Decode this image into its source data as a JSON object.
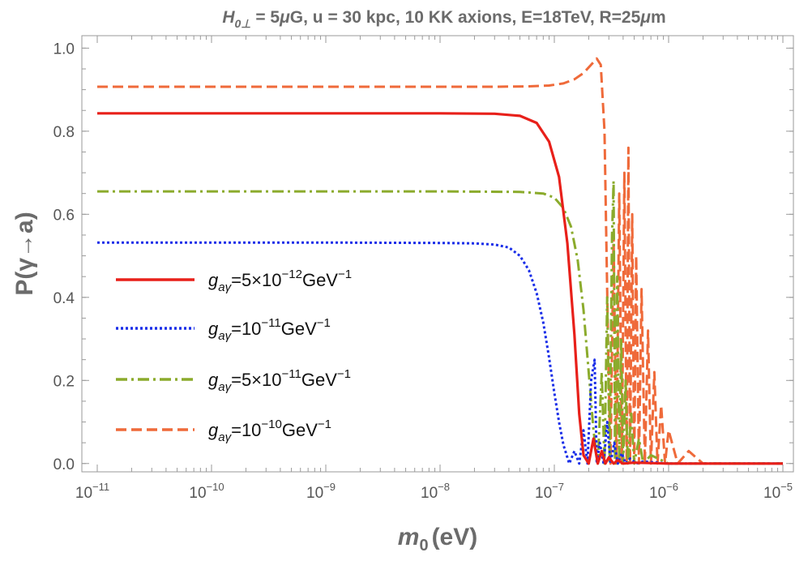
{
  "chart_data": {
    "type": "line",
    "title": "H0⊥ = 5μG, u = 30 kpc, 10 KK axions, E=18TeV, R=25μm",
    "title_parts": {
      "H": "H",
      "sub": "0⊥",
      "rest1": " = 5",
      "mu1": "μ",
      "rest2": "G, u = 30 kpc, 10 KK axions, E=18TeV, R=25",
      "mu2": "μ",
      "rest3": "m"
    },
    "xlabel": "m0 (eV)",
    "xlabel_parts": {
      "main": "m",
      "sub": "0",
      "unit": "(eV)"
    },
    "ylabel": "P(γ→a)",
    "xscale": "log",
    "xlim": [
      1e-11,
      1e-05
    ],
    "ylim": [
      -0.02,
      1.03
    ],
    "grid": false,
    "legend_position": "left",
    "xticks": [
      {
        "value": 1e-11,
        "base": "10",
        "exp": "−11"
      },
      {
        "value": 1e-10,
        "base": "10",
        "exp": "−10"
      },
      {
        "value": 1e-09,
        "base": "10",
        "exp": "−9"
      },
      {
        "value": 1e-08,
        "base": "10",
        "exp": "−8"
      },
      {
        "value": 1e-07,
        "base": "10",
        "exp": "−7"
      },
      {
        "value": 1e-06,
        "base": "10",
        "exp": "−6"
      },
      {
        "value": 1e-05,
        "base": "10",
        "exp": "−5"
      }
    ],
    "yticks": [
      {
        "value": 0.0,
        "label": "0.0"
      },
      {
        "value": 0.2,
        "label": "0.2"
      },
      {
        "value": 0.4,
        "label": "0.4"
      },
      {
        "value": 0.6,
        "label": "0.6"
      },
      {
        "value": 0.8,
        "label": "0.8"
      },
      {
        "value": 1.0,
        "label": "1.0"
      }
    ],
    "series": [
      {
        "name": "gaγ=5×10^-12 GeV^-1",
        "label": {
          "g": "g",
          "sub": "aγ",
          "pre": "=5×10",
          "exp": "−12",
          "unit": "GeV",
          "uexp": "−1"
        },
        "color": "#e8201a",
        "dash": "solid",
        "plateau": 0.843,
        "x": [
          1e-11,
          1e-09,
          1e-08,
          3e-08,
          5e-08,
          7e-08,
          9e-08,
          1.1e-07,
          1.3e-07,
          1.5e-07,
          1.65e-07,
          1.8e-07,
          2e-07,
          2.2e-07,
          2.4e-07,
          2.6e-07,
          2.8e-07,
          3e-07,
          3.3e-07,
          3.6e-07,
          4e-07,
          5e-07,
          1e-06,
          1e-05
        ],
        "y": [
          0.843,
          0.843,
          0.843,
          0.842,
          0.837,
          0.82,
          0.775,
          0.69,
          0.53,
          0.31,
          0.12,
          0.02,
          0.0,
          0.06,
          0.0,
          0.03,
          0.0,
          0.015,
          0.0,
          0.008,
          0.0,
          0.002,
          0.0,
          0.0
        ]
      },
      {
        "name": "gaγ=10^-11 GeV^-1",
        "label": {
          "g": "g",
          "sub": "aγ",
          "pre": "=10",
          "exp": "−11",
          "unit": "GeV",
          "uexp": "−1"
        },
        "color": "#1a2ee8",
        "dash": "dotted",
        "plateau": 0.532,
        "x": [
          1e-11,
          1e-09,
          1e-08,
          2e-08,
          3e-08,
          4e-08,
          5e-08,
          6e-08,
          7e-08,
          8e-08,
          9e-08,
          1e-07,
          1.1e-07,
          1.2e-07,
          1.35e-07,
          1.5e-07,
          1.65e-07,
          1.8e-07,
          1.95e-07,
          2.1e-07,
          2.25e-07,
          2.35e-07,
          2.5e-07,
          2.7e-07,
          2.9e-07,
          3.1e-07,
          3.35e-07,
          3.6e-07,
          3.9e-07,
          4.2e-07,
          4.6e-07,
          5.2e-07,
          6e-07,
          1e-06,
          1e-05
        ],
        "y": [
          0.532,
          0.532,
          0.531,
          0.53,
          0.527,
          0.52,
          0.5,
          0.465,
          0.41,
          0.34,
          0.255,
          0.17,
          0.1,
          0.045,
          0.0,
          0.03,
          0.0,
          0.08,
          0.0,
          0.2,
          0.25,
          0.0,
          0.05,
          0.0,
          0.1,
          0.0,
          0.05,
          0.0,
          0.025,
          0.0,
          0.012,
          0.0,
          0.005,
          0.0,
          0.0
        ]
      },
      {
        "name": "gaγ=5×10^-11 GeV^-1",
        "label": {
          "g": "g",
          "sub": "aγ",
          "pre": "=5×10",
          "exp": "−11",
          "unit": "GeV",
          "uexp": "−1"
        },
        "color": "#8bab2c",
        "dash": "dashdot",
        "plateau": 0.655,
        "x": [
          1e-11,
          1e-09,
          1e-08,
          5e-08,
          8e-08,
          1e-07,
          1.2e-07,
          1.4e-07,
          1.6e-07,
          1.8e-07,
          2e-07,
          2.2e-07,
          2.4e-07,
          2.6e-07,
          2.75e-07,
          2.9e-07,
          3.05e-07,
          3.2e-07,
          3.3e-07,
          3.4e-07,
          3.55e-07,
          3.7e-07,
          3.85e-07,
          4e-07,
          4.2e-07,
          4.4e-07,
          4.7e-07,
          5e-07,
          5.5e-07,
          6e-07,
          7e-07,
          1e-06,
          1e-05
        ],
        "y": [
          0.655,
          0.655,
          0.655,
          0.654,
          0.65,
          0.64,
          0.615,
          0.57,
          0.49,
          0.37,
          0.22,
          0.08,
          0.0,
          0.22,
          0.0,
          0.4,
          0.0,
          0.55,
          0.68,
          0.0,
          0.45,
          0.0,
          0.3,
          0.0,
          0.2,
          0.0,
          0.12,
          0.0,
          0.06,
          0.0,
          0.02,
          0.0,
          0.0
        ]
      },
      {
        "name": "gaγ=10^-10 GeV^-1",
        "label": {
          "g": "g",
          "sub": "aγ",
          "pre": "=10",
          "exp": "−10",
          "unit": "GeV",
          "uexp": "−1"
        },
        "color": "#ef6a3a",
        "dash": "dashed",
        "plateau": 0.907,
        "x": [
          1e-11,
          1e-09,
          1e-08,
          3e-08,
          6e-08,
          9e-08,
          1.2e-07,
          1.5e-07,
          1.8e-07,
          2.1e-07,
          2.35e-07,
          2.55e-07,
          2.75e-07,
          2.95e-07,
          3.1e-07,
          3.3e-07,
          3.5e-07,
          3.7e-07,
          3.9e-07,
          4.1e-07,
          4.3e-07,
          4.45e-07,
          4.6e-07,
          4.8e-07,
          5e-07,
          5.2e-07,
          5.5e-07,
          5.8e-07,
          6.2e-07,
          6.6e-07,
          7e-07,
          7.5e-07,
          8e-07,
          8.6e-07,
          9.3e-07,
          1e-06,
          1.2e-06,
          1.5e-06,
          2e-06,
          3e-06,
          1e-05
        ],
        "y": [
          0.907,
          0.907,
          0.907,
          0.907,
          0.908,
          0.91,
          0.915,
          0.925,
          0.94,
          0.96,
          0.975,
          0.96,
          0.8,
          0.3,
          0.0,
          0.55,
          0.0,
          0.65,
          0.0,
          0.7,
          0.0,
          0.76,
          0.0,
          0.6,
          0.0,
          0.5,
          0.0,
          0.42,
          0.0,
          0.32,
          0.0,
          0.22,
          0.0,
          0.14,
          0.0,
          0.08,
          0.0,
          0.03,
          0.0,
          0.0,
          0.0
        ]
      }
    ]
  }
}
